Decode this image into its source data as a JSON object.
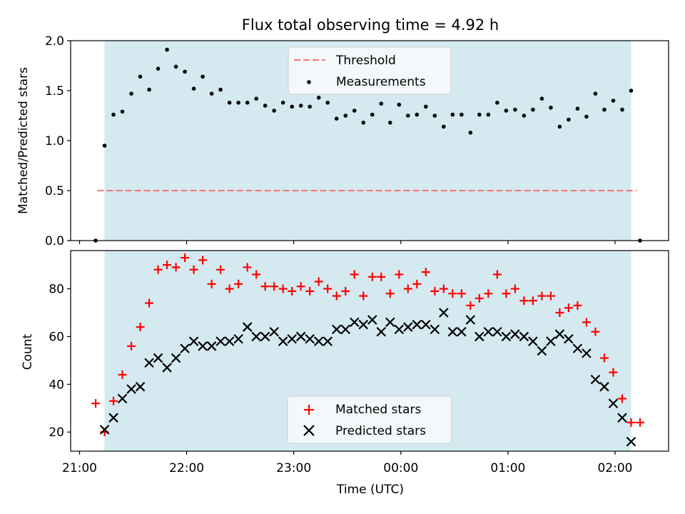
{
  "chart_data": [
    {
      "type": "scatter",
      "title": "Flux total observing time = 4.92 h",
      "xlabel": "",
      "ylabel": "Matched/Predicted stars",
      "xlim": [
        "20:55",
        "02:30"
      ],
      "ylim": [
        0,
        2.0
      ],
      "yticks": [
        "0.0",
        "0.5",
        "1.0",
        "1.5",
        "2.0"
      ],
      "grid": false,
      "legend_position": "top-center",
      "observing_window": {
        "start": "21:14",
        "end": "02:09",
        "color": "#d4eaf0"
      },
      "threshold": {
        "name": "Threshold",
        "value": 0.5,
        "x_range": [
          "21:10",
          "02:12"
        ],
        "color": "#f08080",
        "style": "dashed"
      },
      "series": [
        {
          "name": "Measurements",
          "color": "#000000",
          "marker": "dot",
          "points": [
            [
              "21:09",
              0.0
            ],
            [
              "21:14",
              0.95
            ],
            [
              "21:19",
              1.26
            ],
            [
              "21:24",
              1.29
            ],
            [
              "21:29",
              1.47
            ],
            [
              "21:34",
              1.64
            ],
            [
              "21:39",
              1.51
            ],
            [
              "21:44",
              1.72
            ],
            [
              "21:49",
              1.91
            ],
            [
              "21:54",
              1.74
            ],
            [
              "21:59",
              1.69
            ],
            [
              "22:04",
              1.52
            ],
            [
              "22:09",
              1.64
            ],
            [
              "22:14",
              1.47
            ],
            [
              "22:19",
              1.51
            ],
            [
              "22:24",
              1.38
            ],
            [
              "22:29",
              1.38
            ],
            [
              "22:34",
              1.38
            ],
            [
              "22:39",
              1.42
            ],
            [
              "22:44",
              1.35
            ],
            [
              "22:49",
              1.3
            ],
            [
              "22:54",
              1.38
            ],
            [
              "22:59",
              1.34
            ],
            [
              "23:04",
              1.35
            ],
            [
              "23:09",
              1.34
            ],
            [
              "23:14",
              1.43
            ],
            [
              "23:19",
              1.38
            ],
            [
              "23:24",
              1.22
            ],
            [
              "23:29",
              1.25
            ],
            [
              "23:34",
              1.3
            ],
            [
              "23:39",
              1.18
            ],
            [
              "23:44",
              1.26
            ],
            [
              "23:49",
              1.37
            ],
            [
              "23:54",
              1.18
            ],
            [
              "23:59",
              1.36
            ],
            [
              "00:04",
              1.25
            ],
            [
              "00:09",
              1.26
            ],
            [
              "00:14",
              1.34
            ],
            [
              "00:19",
              1.25
            ],
            [
              "00:24",
              1.14
            ],
            [
              "00:29",
              1.26
            ],
            [
              "00:34",
              1.26
            ],
            [
              "00:39",
              1.08
            ],
            [
              "00:44",
              1.26
            ],
            [
              "00:49",
              1.26
            ],
            [
              "00:54",
              1.38
            ],
            [
              "00:59",
              1.3
            ],
            [
              "01:04",
              1.31
            ],
            [
              "01:09",
              1.25
            ],
            [
              "01:14",
              1.31
            ],
            [
              "01:19",
              1.42
            ],
            [
              "01:24",
              1.33
            ],
            [
              "01:29",
              1.14
            ],
            [
              "01:34",
              1.21
            ],
            [
              "01:39",
              1.32
            ],
            [
              "01:44",
              1.24
            ],
            [
              "01:49",
              1.47
            ],
            [
              "01:54",
              1.31
            ],
            [
              "01:59",
              1.4
            ],
            [
              "02:04",
              1.31
            ],
            [
              "02:09",
              1.5
            ],
            [
              "02:14",
              0.0
            ]
          ]
        }
      ]
    },
    {
      "type": "scatter",
      "title": "",
      "xlabel": "Time (UTC)",
      "ylabel": "Count",
      "xlim": [
        "20:55",
        "02:30"
      ],
      "ylim": [
        12,
        96
      ],
      "xticks": [
        "21:00",
        "22:00",
        "23:00",
        "00:00",
        "01:00",
        "02:00"
      ],
      "yticks": [
        "20",
        "40",
        "60",
        "80"
      ],
      "grid": false,
      "legend_position": "bottom-center",
      "observing_window": {
        "start": "21:14",
        "end": "02:09",
        "color": "#d4eaf0"
      },
      "series": [
        {
          "name": "Matched stars",
          "color": "#ff0000",
          "marker": "plus",
          "points": [
            [
              "21:09",
              32
            ],
            [
              "21:14",
              20
            ],
            [
              "21:19",
              33
            ],
            [
              "21:24",
              44
            ],
            [
              "21:29",
              56
            ],
            [
              "21:34",
              64
            ],
            [
              "21:39",
              74
            ],
            [
              "21:44",
              88
            ],
            [
              "21:49",
              90
            ],
            [
              "21:54",
              89
            ],
            [
              "21:59",
              93
            ],
            [
              "22:04",
              88
            ],
            [
              "22:09",
              92
            ],
            [
              "22:14",
              82
            ],
            [
              "22:19",
              88
            ],
            [
              "22:24",
              80
            ],
            [
              "22:29",
              82
            ],
            [
              "22:34",
              89
            ],
            [
              "22:39",
              86
            ],
            [
              "22:44",
              81
            ],
            [
              "22:49",
              81
            ],
            [
              "22:54",
              80
            ],
            [
              "22:59",
              79
            ],
            [
              "23:04",
              81
            ],
            [
              "23:09",
              79
            ],
            [
              "23:14",
              83
            ],
            [
              "23:19",
              80
            ],
            [
              "23:24",
              77
            ],
            [
              "23:29",
              79
            ],
            [
              "23:34",
              86
            ],
            [
              "23:39",
              77
            ],
            [
              "23:44",
              85
            ],
            [
              "23:49",
              85
            ],
            [
              "23:54",
              78
            ],
            [
              "23:59",
              86
            ],
            [
              "00:04",
              80
            ],
            [
              "00:09",
              82
            ],
            [
              "00:14",
              87
            ],
            [
              "00:19",
              79
            ],
            [
              "00:24",
              80
            ],
            [
              "00:29",
              78
            ],
            [
              "00:34",
              78
            ],
            [
              "00:39",
              73
            ],
            [
              "00:44",
              76
            ],
            [
              "00:49",
              78
            ],
            [
              "00:54",
              86
            ],
            [
              "00:59",
              78
            ],
            [
              "01:04",
              80
            ],
            [
              "01:09",
              75
            ],
            [
              "01:14",
              75
            ],
            [
              "01:19",
              77
            ],
            [
              "01:24",
              77
            ],
            [
              "01:29",
              70
            ],
            [
              "01:34",
              72
            ],
            [
              "01:39",
              73
            ],
            [
              "01:44",
              66
            ],
            [
              "01:49",
              62
            ],
            [
              "01:54",
              51
            ],
            [
              "01:59",
              45
            ],
            [
              "02:04",
              34
            ],
            [
              "02:09",
              24
            ],
            [
              "02:14",
              24
            ]
          ]
        },
        {
          "name": "Predicted stars",
          "color": "#000000",
          "marker": "x",
          "points": [
            [
              "21:14",
              21
            ],
            [
              "21:19",
              26
            ],
            [
              "21:24",
              34
            ],
            [
              "21:29",
              38
            ],
            [
              "21:34",
              39
            ],
            [
              "21:39",
              49
            ],
            [
              "21:44",
              51
            ],
            [
              "21:49",
              47
            ],
            [
              "21:54",
              51
            ],
            [
              "21:59",
              55
            ],
            [
              "22:04",
              58
            ],
            [
              "22:09",
              56
            ],
            [
              "22:14",
              56
            ],
            [
              "22:19",
              58
            ],
            [
              "22:24",
              58
            ],
            [
              "22:29",
              59
            ],
            [
              "22:34",
              64
            ],
            [
              "22:39",
              60
            ],
            [
              "22:44",
              60
            ],
            [
              "22:49",
              62
            ],
            [
              "22:54",
              58
            ],
            [
              "22:59",
              59
            ],
            [
              "23:04",
              60
            ],
            [
              "23:09",
              59
            ],
            [
              "23:14",
              58
            ],
            [
              "23:19",
              58
            ],
            [
              "23:24",
              63
            ],
            [
              "23:29",
              63
            ],
            [
              "23:34",
              66
            ],
            [
              "23:39",
              65
            ],
            [
              "23:44",
              67
            ],
            [
              "23:49",
              62
            ],
            [
              "23:54",
              66
            ],
            [
              "23:59",
              63
            ],
            [
              "00:04",
              64
            ],
            [
              "00:09",
              65
            ],
            [
              "00:14",
              65
            ],
            [
              "00:19",
              63
            ],
            [
              "00:24",
              70
            ],
            [
              "00:29",
              62
            ],
            [
              "00:34",
              62
            ],
            [
              "00:39",
              67
            ],
            [
              "00:44",
              60
            ],
            [
              "00:49",
              62
            ],
            [
              "00:54",
              62
            ],
            [
              "00:59",
              60
            ],
            [
              "01:04",
              61
            ],
            [
              "01:09",
              60
            ],
            [
              "01:14",
              58
            ],
            [
              "01:19",
              54
            ],
            [
              "01:24",
              58
            ],
            [
              "01:29",
              61
            ],
            [
              "01:34",
              59
            ],
            [
              "01:39",
              55
            ],
            [
              "01:44",
              53
            ],
            [
              "01:49",
              42
            ],
            [
              "01:54",
              39
            ],
            [
              "01:59",
              32
            ],
            [
              "02:04",
              26
            ],
            [
              "02:09",
              16
            ]
          ]
        }
      ]
    }
  ]
}
